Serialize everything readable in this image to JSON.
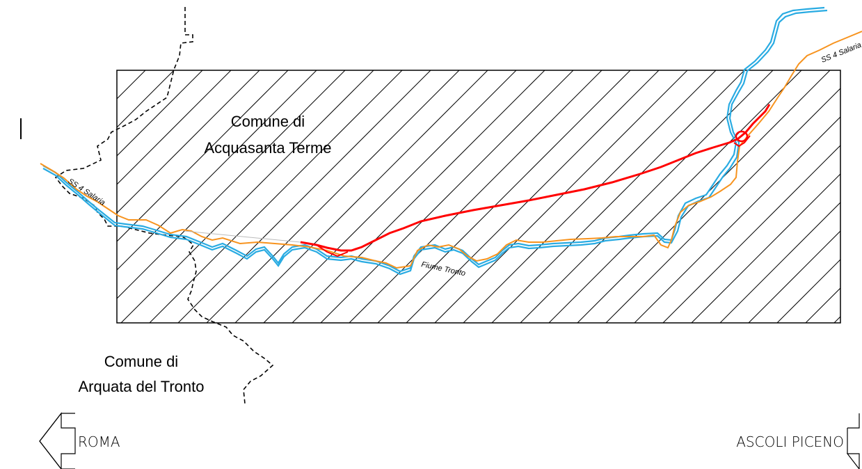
{
  "labels": {
    "comune_acquasanta_line1": "Comune di",
    "comune_acquasanta_line2": "Acquasanta Terme",
    "comune_arquata_line1": "Comune di",
    "comune_arquata_line2": "Arquata del Tronto",
    "road_left": "SS 4 Salaria",
    "road_right": "SS 4 Salaria",
    "river": "Fiume Tronto",
    "direction_left": "ROMA",
    "direction_right": "ASCOLI PICENO"
  },
  "colors": {
    "river": "#29abe2",
    "road": "#f7931e",
    "new_road": "#ff0000",
    "boundary": "#000000",
    "hatch": "#000000"
  },
  "legend": {
    "hatched_area": "study area (hatched rectangle)",
    "boundary_style": "dashed"
  }
}
